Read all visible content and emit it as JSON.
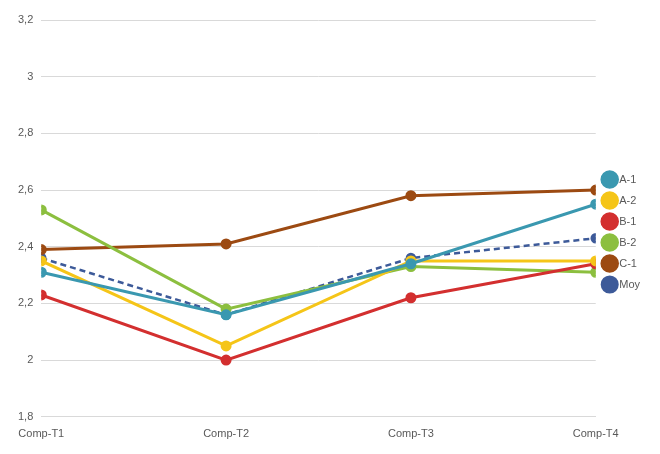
{
  "chart_data": {
    "type": "line",
    "categories": [
      "Comp-T1",
      "Comp-T2",
      "Comp-T3",
      "Comp-T4"
    ],
    "series": [
      {
        "name": "A-1",
        "color": "#3a98b0",
        "marker": "circle",
        "line_style": "solid",
        "values": [
          2.31,
          2.16,
          2.34,
          2.55
        ]
      },
      {
        "name": "A-2",
        "color": "#f5c518",
        "marker": "circle",
        "line_style": "solid",
        "values": [
          2.35,
          2.05,
          2.35,
          2.35
        ]
      },
      {
        "name": "B-1",
        "color": "#d32f2f",
        "marker": "circle",
        "line_style": "solid",
        "values": [
          2.23,
          2.0,
          2.22,
          2.34
        ]
      },
      {
        "name": "B-2",
        "color": "#8cbf3f",
        "marker": "circle",
        "line_style": "solid",
        "values": [
          2.53,
          2.18,
          2.33,
          2.31
        ]
      },
      {
        "name": "C-1",
        "color": "#9c4a12",
        "marker": "circle",
        "line_style": "solid",
        "values": [
          2.39,
          2.41,
          2.58,
          2.6
        ]
      },
      {
        "name": "Moy",
        "color": "#3d5a99",
        "marker": "circle",
        "line_style": "dashed",
        "values": [
          2.36,
          2.16,
          2.36,
          2.43
        ]
      }
    ],
    "ylim": [
      1.8,
      3.2
    ],
    "yticks": [
      {
        "value": 1.8,
        "label": "1,8"
      },
      2,
      {
        "value": 2.2,
        "label": "2,2"
      },
      {
        "value": 2.4,
        "label": "2,4"
      },
      {
        "value": 2.6,
        "label": "2,6"
      },
      {
        "value": 2.8,
        "label": "2,8"
      },
      3,
      {
        "value": 3.2,
        "label": "3,2"
      }
    ],
    "grid": true,
    "legend": "right"
  }
}
